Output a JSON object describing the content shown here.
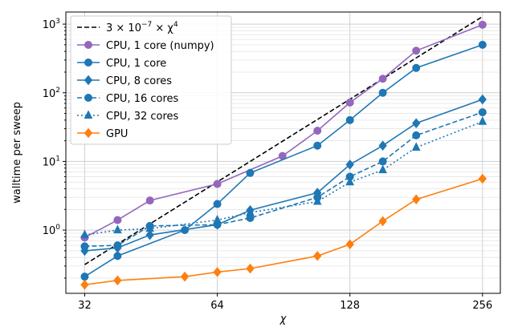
{
  "chart_data": {
    "type": "line",
    "title": "",
    "xlabel": "χ",
    "ylabel": "walltime per sweep",
    "xscale": "log2",
    "yscale": "log10",
    "xlim": [
      29,
      281
    ],
    "ylim": [
      0.12,
      1500
    ],
    "x_ticks": [
      32,
      64,
      128,
      256
    ],
    "x_tick_labels": [
      "32",
      "64",
      "128",
      "256"
    ],
    "y_ticks": [
      1,
      10,
      100,
      1000
    ],
    "y_tick_labels": [
      {
        "base": "10",
        "exp": "0"
      },
      {
        "base": "10",
        "exp": "1"
      },
      {
        "base": "10",
        "exp": "2"
      },
      {
        "base": "10",
        "exp": "3"
      }
    ],
    "grid": true,
    "legend_position": "top-left",
    "reference_line": {
      "name": "3 × 10⁻⁷ × χ⁴",
      "label_main": "3 × 10",
      "label_exp1": "−7",
      "label_mid": " × χ",
      "label_exp2": "4",
      "coefficient": 3e-07,
      "power": 4,
      "x_range": [
        32,
        256
      ],
      "color": "#000000",
      "style": "dashed"
    },
    "series": [
      {
        "name": "CPU, 1 core (numpy)",
        "color": "#9467bd",
        "marker": "circle",
        "style": "solid",
        "x": [
          32,
          38,
          45,
          54,
          64,
          76,
          90,
          108,
          128,
          152,
          181,
          256
        ],
        "values": [
          0.78,
          1.4,
          2.7,
          null,
          4.7,
          null,
          12,
          28,
          72,
          160,
          410,
          980
        ]
      },
      {
        "name": "CPU, 1 core",
        "color": "#1f77b4",
        "marker": "circle",
        "style": "solid",
        "x": [
          32,
          38,
          45,
          54,
          64,
          76,
          90,
          108,
          128,
          152,
          181,
          256
        ],
        "values": [
          0.21,
          0.42,
          null,
          1.0,
          2.4,
          6.8,
          null,
          17,
          40,
          100,
          230,
          500
        ]
      },
      {
        "name": "CPU, 8 cores",
        "color": "#1f77b4",
        "marker": "diamond",
        "style": "solid",
        "x": [
          32,
          38,
          45,
          64,
          76,
          90,
          108,
          128,
          152,
          181,
          256
        ],
        "values": [
          0.5,
          0.55,
          0.85,
          1.2,
          1.95,
          null,
          3.5,
          9,
          17,
          36,
          80
        ]
      },
      {
        "name": "CPU, 16 cores",
        "color": "#1f77b4",
        "marker": "circle",
        "style": "dashed",
        "x": [
          32,
          38,
          45,
          64,
          76,
          90,
          108,
          128,
          152,
          181,
          256
        ],
        "values": [
          0.58,
          0.6,
          1.15,
          1.2,
          1.5,
          null,
          3.0,
          6,
          10,
          24,
          52
        ]
      },
      {
        "name": "CPU, 32 cores",
        "color": "#1f77b4",
        "marker": "triangle",
        "style": "dotted",
        "x": [
          32,
          38,
          45,
          64,
          76,
          90,
          108,
          128,
          152,
          181,
          256
        ],
        "values": [
          0.85,
          1.0,
          1.05,
          1.4,
          1.8,
          null,
          2.6,
          5,
          7.5,
          16,
          38
        ]
      },
      {
        "name": "GPU",
        "color": "#ff7f0e",
        "marker": "diamond",
        "style": "solid",
        "x": [
          32,
          38,
          45,
          54,
          64,
          76,
          90,
          108,
          128,
          152,
          181,
          256
        ],
        "values": [
          0.16,
          0.185,
          null,
          0.21,
          0.245,
          0.275,
          null,
          0.42,
          0.62,
          1.35,
          2.8,
          5.6
        ]
      }
    ]
  }
}
